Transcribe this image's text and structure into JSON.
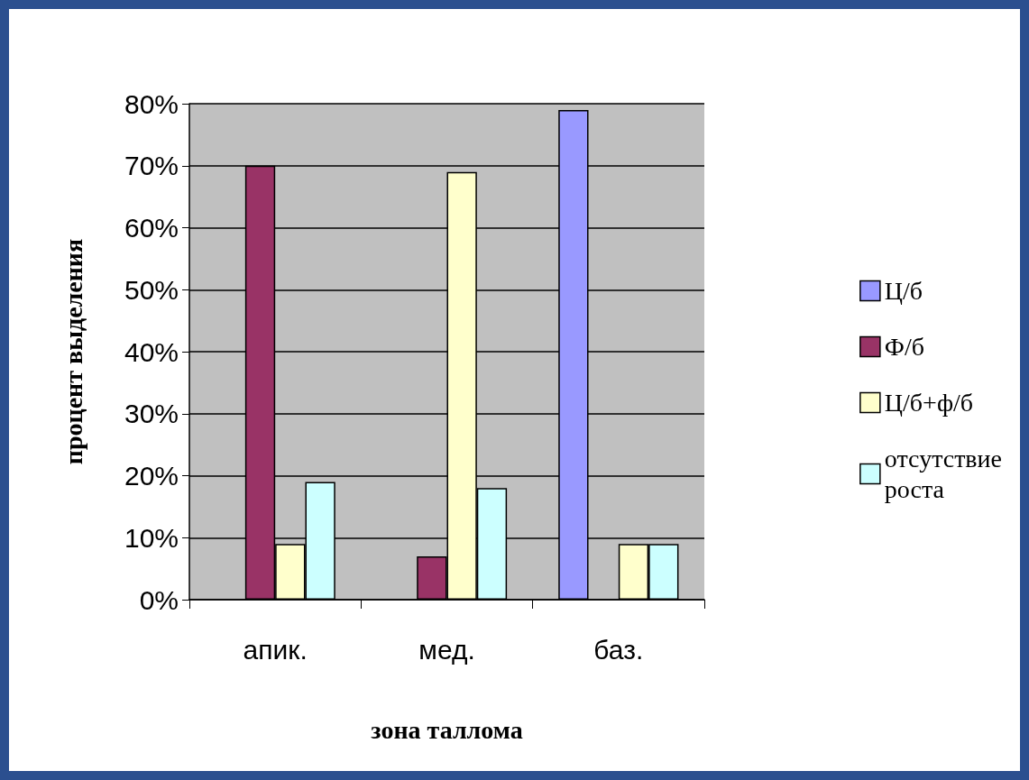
{
  "chart_data": {
    "type": "bar",
    "xlabel": "зона таллома",
    "ylabel": "процент выделения",
    "categories": [
      "апик.",
      "мед.",
      "баз."
    ],
    "series": [
      {
        "name": "Ц/б",
        "color": "#9999ff",
        "values": [
          0,
          0,
          79
        ]
      },
      {
        "name": "Ф/б",
        "color": "#993366",
        "values": [
          70,
          7,
          0
        ]
      },
      {
        "name": "Ц/б+ф/б",
        "color": "#ffffcc",
        "values": [
          9,
          69,
          9
        ]
      },
      {
        "name": "отсутствие роста",
        "color": "#ccffff",
        "values": [
          19,
          18,
          9
        ]
      }
    ],
    "ylim": [
      0,
      80
    ],
    "yticks": [
      {
        "value": 0,
        "label": "0%"
      },
      {
        "value": 10,
        "label": "10%"
      },
      {
        "value": 20,
        "label": "20%"
      },
      {
        "value": 30,
        "label": "30%"
      },
      {
        "value": 40,
        "label": "40%"
      },
      {
        "value": 50,
        "label": "50%"
      },
      {
        "value": 60,
        "label": "60%"
      },
      {
        "value": 70,
        "label": "70%"
      },
      {
        "value": 80,
        "label": "80%"
      }
    ],
    "grid": "y",
    "legend": "right"
  }
}
